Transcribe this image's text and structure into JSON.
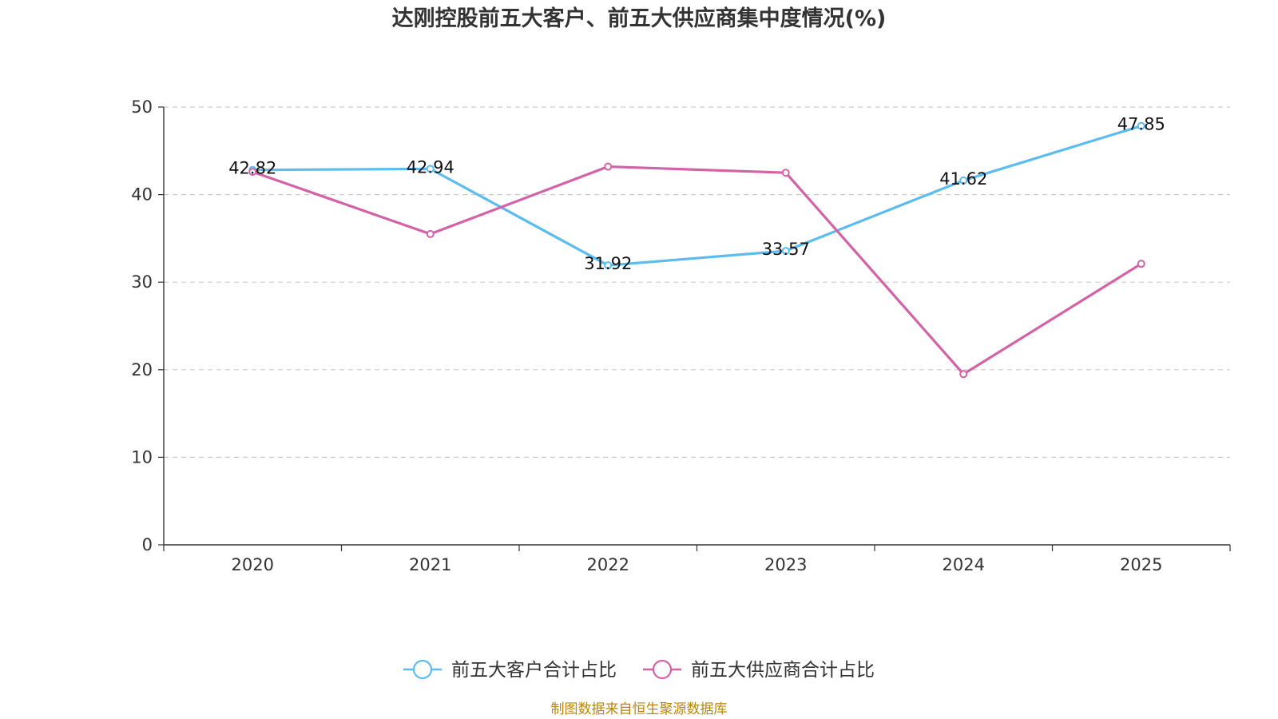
{
  "chart_data": {
    "type": "line",
    "title": "达刚控股前五大客户、前五大供应商集中度情况(%)",
    "categories": [
      "2020",
      "2021",
      "2022",
      "2023",
      "2024",
      "2025"
    ],
    "ylim": [
      0,
      50
    ],
    "yticks": [
      0,
      10,
      20,
      30,
      40,
      50
    ],
    "grid": true,
    "legend_position": "bottom-center",
    "series": [
      {
        "name": "前五大客户合计占比",
        "color": "#5bbcef",
        "values": [
          42.82,
          42.94,
          31.92,
          33.57,
          41.62,
          47.85
        ],
        "labels": [
          "42.82",
          "42.94",
          "31.92",
          "33.57",
          "41.62",
          "47.85"
        ]
      },
      {
        "name": "前五大供应商合计占比",
        "color": "#d462a6",
        "values": [
          42.6,
          35.5,
          43.2,
          42.5,
          19.5,
          32.1
        ],
        "labels": null
      }
    ]
  },
  "source": "制图数据来自恒生聚源数据库"
}
